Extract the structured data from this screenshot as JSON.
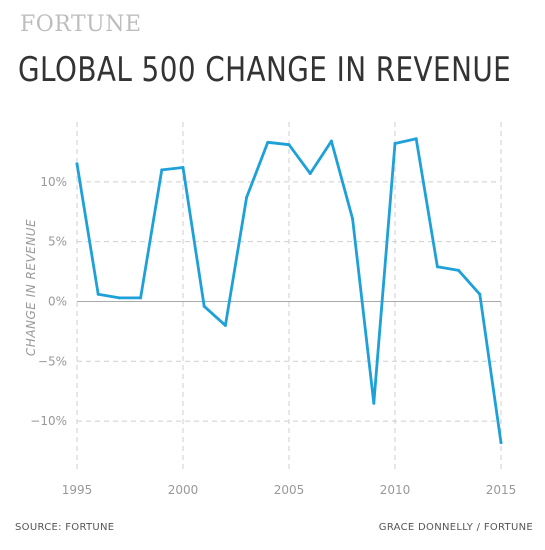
{
  "header": {
    "brand": "FORTUNE",
    "title": "GLOBAL 500 CHANGE IN REVENUE"
  },
  "footer": {
    "source": "SOURCE: FORTUNE",
    "credit": "GRACE DONNELLY / FORTUNE"
  },
  "colors": {
    "line": "#1ea0d8",
    "grid": "#cfcfcf",
    "zero_line": "#aaaaaa"
  },
  "chart_data": {
    "type": "line",
    "title": "GLOBAL 500 CHANGE IN REVENUE",
    "xlabel": "",
    "ylabel": "CHANGE IN REVENUE",
    "xlim": [
      1995,
      2015
    ],
    "ylim": [
      -14,
      15
    ],
    "x_ticks": [
      1995,
      2000,
      2005,
      2010,
      2015
    ],
    "x_tick_labels": [
      "1995",
      "2000",
      "2005",
      "2010",
      "2015"
    ],
    "y_ticks": [
      10,
      5,
      0,
      -5,
      -10
    ],
    "y_tick_labels": [
      "10%",
      "5%",
      "0%",
      "−5%",
      "−10%"
    ],
    "grid": true,
    "legend": "none",
    "series": [
      {
        "x": [
          1995,
          1996,
          1997,
          1998,
          1999,
          2000,
          2001,
          2002,
          2003,
          2004,
          2005,
          2006,
          2007,
          2008,
          2009,
          2010,
          2011,
          2012,
          2013,
          2014,
          2015
        ],
        "values": [
          11.5,
          0.6,
          0.3,
          0.3,
          11.0,
          11.2,
          -0.4,
          -2.0,
          8.7,
          13.3,
          13.1,
          10.7,
          13.4,
          6.9,
          -8.5,
          13.2,
          13.6,
          2.9,
          2.6,
          0.6,
          -11.8
        ]
      }
    ]
  }
}
